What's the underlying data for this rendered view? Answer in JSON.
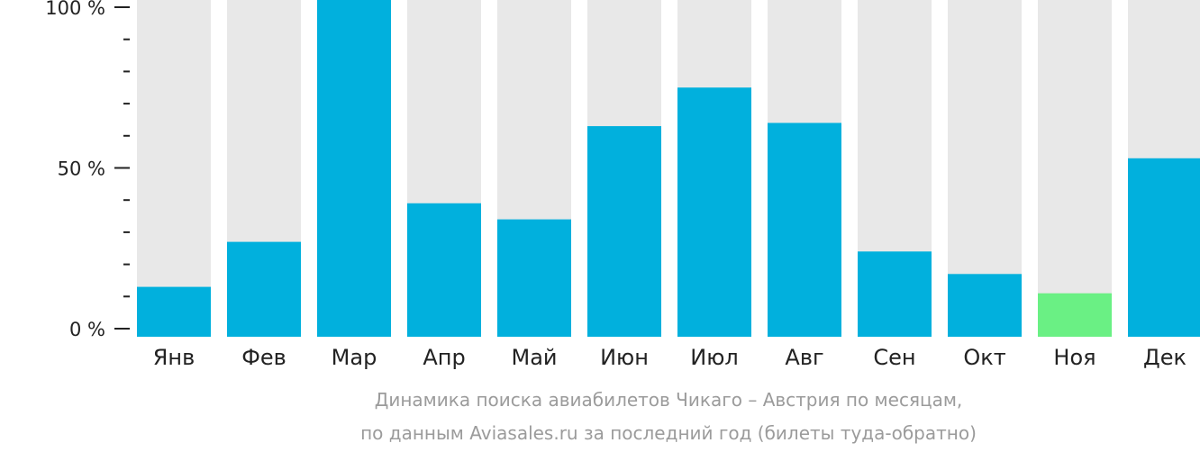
{
  "chart_data": {
    "type": "bar",
    "categories": [
      "Янв",
      "Фев",
      "Мар",
      "Апр",
      "Май",
      "Июн",
      "Июл",
      "Авг",
      "Сен",
      "Окт",
      "Ноя",
      "Дек"
    ],
    "values": [
      13,
      27,
      100,
      39,
      34,
      63,
      75,
      64,
      24,
      17,
      11,
      53
    ],
    "highlight_index": 10,
    "ylim": [
      0,
      100
    ],
    "yticks": [
      0,
      50,
      100
    ],
    "ytick_labels": [
      "0 %",
      "50 %",
      "100 %"
    ],
    "minor_ticks": [
      10,
      20,
      30,
      40,
      60,
      70,
      80,
      90
    ],
    "caption_lines": [
      "Динамика поиска авиабилетов Чикаго – Австрия по месяцам,",
      "по данным Aviasales.ru за последний год (билеты туда-обратно)"
    ],
    "colors": {
      "bar": "#01b0dd",
      "highlight": "#6af084",
      "track": "#e8e8e8",
      "axis": "#222222",
      "caption": "#9b9b9b"
    }
  }
}
